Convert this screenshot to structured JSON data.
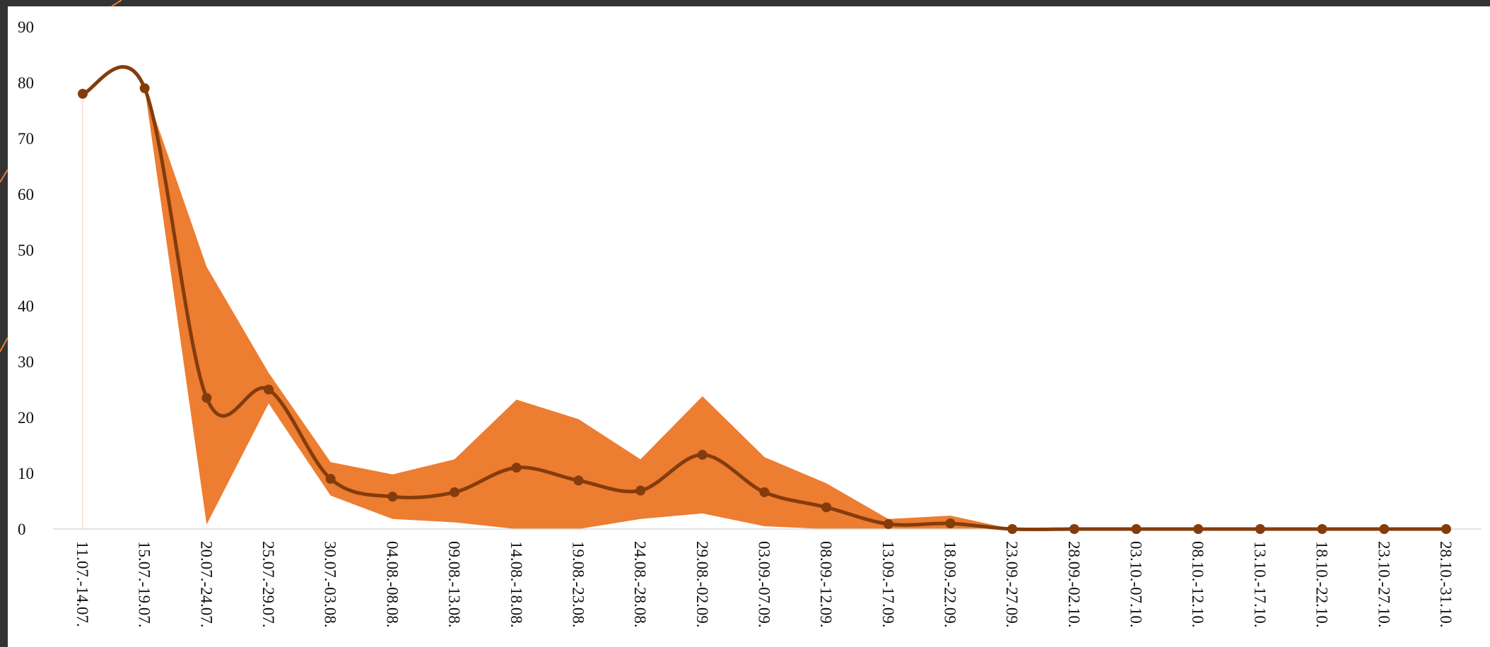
{
  "chart_data": {
    "type": "line",
    "title": "",
    "xlabel": "",
    "ylabel": "",
    "ylim": [
      0,
      90
    ],
    "y_ticks": [
      "0",
      "10",
      "20",
      "30",
      "40",
      "50",
      "60",
      "70",
      "80",
      "90"
    ],
    "grid": false,
    "legend": "none",
    "categories": [
      "11.07.-14.07.",
      "15.07.-19.07.",
      "20.07.-24.07.",
      "25.07.-29.07.",
      "30.07.-03.08.",
      "04.08.-08.08.",
      "09.08.-13.08.",
      "14.08.-18.08.",
      "19.08.-23.08.",
      "24.08.-28.08.",
      "29.08.-02.09.",
      "03.09.-07.09.",
      "08.09.-12.09.",
      "13.09.-17.09.",
      "18.09.-22.09.",
      "23.09.-27.09.",
      "28.09.-02.10.",
      "03.10.-07.10.",
      "08.10.-12.10.",
      "13.10.-17.10.",
      "18.10.-22.10.",
      "23.10.-27.10.",
      "28.10.-31.10."
    ],
    "series": [
      {
        "role": "mean",
        "values": [
          78,
          79,
          23.5,
          25,
          9,
          5.8,
          6.6,
          11,
          8.7,
          6.9,
          13.3,
          6.6,
          3.9,
          0.9,
          1,
          0,
          0,
          0,
          0,
          0,
          0,
          0,
          0
        ]
      },
      {
        "role": "upper-band",
        "values": [
          78,
          79,
          47,
          28,
          12,
          9.8,
          12.5,
          23.2,
          19.7,
          12.5,
          23.8,
          12.9,
          8.2,
          1.8,
          2.4,
          0,
          0,
          0,
          0,
          0,
          0,
          0,
          0
        ]
      },
      {
        "role": "lower-band",
        "values": [
          78,
          79,
          0.8,
          22.5,
          6,
          1.8,
          1.2,
          0,
          0,
          1.8,
          2.8,
          0.5,
          0,
          0,
          0,
          0,
          0,
          0,
          0,
          0,
          0,
          0,
          0
        ]
      }
    ],
    "colors": {
      "band": "#ED7D31",
      "line": "#843C0C",
      "axis": "#D9D9D9",
      "frame": "#333333",
      "decor_line": "#ED7D31"
    }
  }
}
